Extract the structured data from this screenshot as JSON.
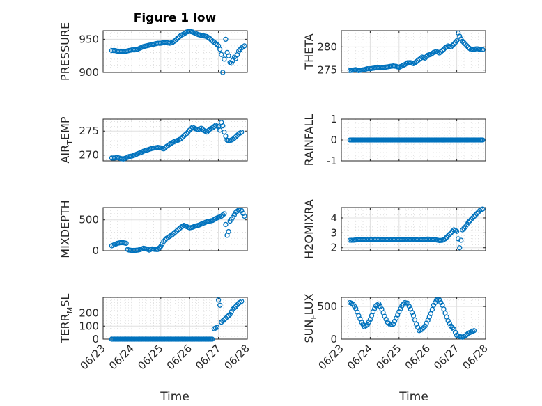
{
  "figure": {
    "title": "Figure 1 low",
    "xlabel": "Time",
    "x_tick_labels": [
      "06/23",
      "06/24",
      "06/25",
      "06/26",
      "06/27",
      "06/28"
    ],
    "marker_color": "#0072BD"
  },
  "chart_data": [
    {
      "type": "scatter",
      "ylabel": "PRESSURE",
      "ylim": [
        900,
        963
      ],
      "yticks": [
        900,
        950
      ],
      "grid": true,
      "points": [
        [
          0.3,
          933
        ],
        [
          0.4,
          933
        ],
        [
          0.5,
          932
        ],
        [
          0.6,
          932
        ],
        [
          0.7,
          932
        ],
        [
          0.8,
          932
        ],
        [
          0.9,
          933
        ],
        [
          1.0,
          934
        ],
        [
          1.1,
          934
        ],
        [
          1.2,
          935
        ],
        [
          1.3,
          937
        ],
        [
          1.4,
          939
        ],
        [
          1.5,
          940
        ],
        [
          1.6,
          941
        ],
        [
          1.7,
          942
        ],
        [
          1.8,
          943
        ],
        [
          1.9,
          944
        ],
        [
          2.0,
          944
        ],
        [
          2.1,
          945
        ],
        [
          2.2,
          945
        ],
        [
          2.3,
          944
        ],
        [
          2.4,
          945
        ],
        [
          2.5,
          948
        ],
        [
          2.6,
          952
        ],
        [
          2.7,
          956
        ],
        [
          2.8,
          958
        ],
        [
          2.9,
          961
        ],
        [
          3.0,
          962
        ],
        [
          3.1,
          961
        ],
        [
          3.2,
          959
        ],
        [
          3.3,
          957
        ],
        [
          3.4,
          956
        ],
        [
          3.5,
          955
        ],
        [
          3.6,
          954
        ],
        [
          3.7,
          951
        ],
        [
          3.8,
          947
        ],
        [
          3.9,
          944
        ],
        [
          4.0,
          940
        ],
        [
          4.05,
          935
        ],
        [
          4.1,
          927
        ],
        [
          4.15,
          900
        ],
        [
          4.2,
          920
        ],
        [
          4.25,
          950
        ],
        [
          4.3,
          930
        ],
        [
          4.35,
          925
        ],
        [
          4.4,
          915
        ],
        [
          4.45,
          914
        ],
        [
          4.5,
          918
        ],
        [
          4.55,
          923
        ],
        [
          4.6,
          921
        ],
        [
          4.7,
          932
        ],
        [
          4.8,
          937
        ],
        [
          4.9,
          940
        ]
      ]
    },
    {
      "type": "scatter",
      "ylabel": "THETA",
      "ylim": [
        274.5,
        283.5
      ],
      "yticks": [
        275,
        280
      ],
      "grid": true,
      "points": [
        [
          0.3,
          274.9
        ],
        [
          0.4,
          275.0
        ],
        [
          0.5,
          275.1
        ],
        [
          0.6,
          274.9
        ],
        [
          0.7,
          275.0
        ],
        [
          0.8,
          275.1
        ],
        [
          0.9,
          275.3
        ],
        [
          1.0,
          275.3
        ],
        [
          1.1,
          275.4
        ],
        [
          1.2,
          275.5
        ],
        [
          1.3,
          275.5
        ],
        [
          1.4,
          275.6
        ],
        [
          1.5,
          275.6
        ],
        [
          1.6,
          275.7
        ],
        [
          1.7,
          275.8
        ],
        [
          1.8,
          275.9
        ],
        [
          1.9,
          275.8
        ],
        [
          2.0,
          275.6
        ],
        [
          2.1,
          275.9
        ],
        [
          2.2,
          276.2
        ],
        [
          2.3,
          276.6
        ],
        [
          2.4,
          276.6
        ],
        [
          2.5,
          276.4
        ],
        [
          2.6,
          276.8
        ],
        [
          2.7,
          277.3
        ],
        [
          2.8,
          277.8
        ],
        [
          2.9,
          277.6
        ],
        [
          3.0,
          278.2
        ],
        [
          3.1,
          278.4
        ],
        [
          3.2,
          278.8
        ],
        [
          3.3,
          279.0
        ],
        [
          3.4,
          278.7
        ],
        [
          3.5,
          279.2
        ],
        [
          3.6,
          279.8
        ],
        [
          3.7,
          280.2
        ],
        [
          3.8,
          280.0
        ],
        [
          3.9,
          280.6
        ],
        [
          4.0,
          281.3
        ],
        [
          4.05,
          283.0
        ],
        [
          4.1,
          282.3
        ],
        [
          4.15,
          281.7
        ],
        [
          4.2,
          281.2
        ],
        [
          4.3,
          280.6
        ],
        [
          4.4,
          279.9
        ],
        [
          4.5,
          279.4
        ],
        [
          4.6,
          279.5
        ],
        [
          4.7,
          279.6
        ],
        [
          4.8,
          279.5
        ],
        [
          4.9,
          279.4
        ]
      ]
    },
    {
      "type": "scatter",
      "ylabel": "AIR_TEMP",
      "ylim": [
        268.8,
        277.5
      ],
      "yticks": [
        270,
        275
      ],
      "grid": true,
      "points": [
        [
          0.3,
          269.4
        ],
        [
          0.4,
          269.4
        ],
        [
          0.5,
          269.5
        ],
        [
          0.6,
          269.3
        ],
        [
          0.7,
          269.2
        ],
        [
          0.8,
          269.4
        ],
        [
          0.9,
          269.7
        ],
        [
          1.0,
          269.8
        ],
        [
          1.1,
          270.0
        ],
        [
          1.2,
          270.3
        ],
        [
          1.3,
          270.5
        ],
        [
          1.4,
          270.8
        ],
        [
          1.5,
          271.0
        ],
        [
          1.6,
          271.2
        ],
        [
          1.7,
          271.4
        ],
        [
          1.8,
          271.5
        ],
        [
          1.9,
          271.6
        ],
        [
          2.0,
          271.5
        ],
        [
          2.1,
          271.3
        ],
        [
          2.2,
          271.8
        ],
        [
          2.3,
          272.2
        ],
        [
          2.4,
          272.6
        ],
        [
          2.5,
          272.9
        ],
        [
          2.6,
          273.1
        ],
        [
          2.7,
          273.4
        ],
        [
          2.8,
          274.0
        ],
        [
          2.9,
          274.5
        ],
        [
          3.0,
          275.2
        ],
        [
          3.1,
          275.8
        ],
        [
          3.2,
          275.5
        ],
        [
          3.3,
          275.3
        ],
        [
          3.4,
          275.6
        ],
        [
          3.5,
          275.1
        ],
        [
          3.6,
          274.8
        ],
        [
          3.7,
          275.4
        ],
        [
          3.8,
          275.7
        ],
        [
          3.9,
          276.2
        ],
        [
          4.0,
          275.9
        ],
        [
          4.05,
          275.2
        ],
        [
          4.1,
          276.8
        ],
        [
          4.15,
          276.1
        ],
        [
          4.2,
          274.8
        ],
        [
          4.3,
          273.1
        ],
        [
          4.4,
          273.0
        ],
        [
          4.5,
          273.3
        ],
        [
          4.6,
          273.8
        ],
        [
          4.7,
          274.4
        ],
        [
          4.8,
          274.8
        ]
      ]
    },
    {
      "type": "scatter",
      "ylabel": "RAINFALL",
      "ylim": [
        -1,
        1
      ],
      "yticks": [
        -1,
        0,
        1
      ],
      "grid": true,
      "x_range": [
        0.3,
        4.9
      ],
      "constant_value": 0
    },
    {
      "type": "scatter",
      "ylabel": "MIXDEPTH",
      "ylim": [
        0,
        700
      ],
      "yticks": [
        0,
        500
      ],
      "grid": true,
      "points": [
        [
          0.3,
          80
        ],
        [
          0.4,
          100
        ],
        [
          0.5,
          120
        ],
        [
          0.6,
          130
        ],
        [
          0.7,
          130
        ],
        [
          0.8,
          120
        ],
        [
          0.85,
          20
        ],
        [
          0.9,
          10
        ],
        [
          1.0,
          5
        ],
        [
          1.1,
          5
        ],
        [
          1.2,
          10
        ],
        [
          1.3,
          20
        ],
        [
          1.4,
          40
        ],
        [
          1.5,
          30
        ],
        [
          1.6,
          10
        ],
        [
          1.7,
          30
        ],
        [
          1.8,
          20
        ],
        [
          1.9,
          20
        ],
        [
          2.0,
          70
        ],
        [
          2.1,
          150
        ],
        [
          2.2,
          200
        ],
        [
          2.3,
          230
        ],
        [
          2.4,
          260
        ],
        [
          2.5,
          300
        ],
        [
          2.6,
          340
        ],
        [
          2.7,
          380
        ],
        [
          2.8,
          410
        ],
        [
          2.9,
          390
        ],
        [
          3.0,
          370
        ],
        [
          3.1,
          380
        ],
        [
          3.2,
          400
        ],
        [
          3.3,
          410
        ],
        [
          3.4,
          430
        ],
        [
          3.5,
          450
        ],
        [
          3.6,
          470
        ],
        [
          3.7,
          480
        ],
        [
          3.8,
          490
        ],
        [
          3.9,
          520
        ],
        [
          4.0,
          540
        ],
        [
          4.1,
          560
        ],
        [
          4.2,
          600
        ],
        [
          4.3,
          250
        ],
        [
          4.35,
          310
        ],
        [
          4.4,
          480
        ],
        [
          4.5,
          540
        ],
        [
          4.6,
          620
        ],
        [
          4.7,
          660
        ],
        [
          4.8,
          650
        ],
        [
          4.9,
          560
        ]
      ]
    },
    {
      "type": "scatter",
      "ylabel": "H2OMIXRA",
      "ylim": [
        1.8,
        4.7
      ],
      "yticks": [
        2,
        3,
        4
      ],
      "grid": true,
      "points": [
        [
          0.3,
          2.5
        ],
        [
          0.4,
          2.5
        ],
        [
          0.5,
          2.52
        ],
        [
          0.6,
          2.55
        ],
        [
          0.7,
          2.55
        ],
        [
          0.8,
          2.55
        ],
        [
          0.9,
          2.57
        ],
        [
          1.0,
          2.57
        ],
        [
          1.1,
          2.57
        ],
        [
          1.2,
          2.57
        ],
        [
          1.3,
          2.57
        ],
        [
          1.4,
          2.56
        ],
        [
          1.5,
          2.56
        ],
        [
          1.6,
          2.56
        ],
        [
          1.7,
          2.56
        ],
        [
          1.8,
          2.56
        ],
        [
          1.9,
          2.55
        ],
        [
          2.0,
          2.55
        ],
        [
          2.1,
          2.55
        ],
        [
          2.2,
          2.54
        ],
        [
          2.3,
          2.54
        ],
        [
          2.4,
          2.53
        ],
        [
          2.5,
          2.53
        ],
        [
          2.6,
          2.55
        ],
        [
          2.7,
          2.57
        ],
        [
          2.8,
          2.55
        ],
        [
          2.9,
          2.56
        ],
        [
          3.0,
          2.58
        ],
        [
          3.1,
          2.56
        ],
        [
          3.2,
          2.55
        ],
        [
          3.3,
          2.52
        ],
        [
          3.4,
          2.48
        ],
        [
          3.5,
          2.5
        ],
        [
          3.6,
          2.6
        ],
        [
          3.7,
          2.8
        ],
        [
          3.8,
          3.0
        ],
        [
          3.9,
          3.2
        ],
        [
          4.0,
          3.1
        ],
        [
          4.05,
          2.6
        ],
        [
          4.1,
          2.0
        ],
        [
          4.15,
          2.5
        ],
        [
          4.2,
          3.2
        ],
        [
          4.3,
          3.4
        ],
        [
          4.4,
          3.7
        ],
        [
          4.5,
          3.9
        ],
        [
          4.6,
          4.1
        ],
        [
          4.7,
          4.3
        ],
        [
          4.8,
          4.5
        ],
        [
          4.9,
          4.6
        ]
      ]
    },
    {
      "type": "scatter",
      "ylabel": "TERR_MSL",
      "ylim": [
        0,
        320
      ],
      "yticks": [
        0,
        100,
        200
      ],
      "grid": true,
      "flat_segment": {
        "x_range": [
          0.3,
          3.8
        ],
        "value": 0
      },
      "points": [
        [
          3.85,
          80
        ],
        [
          3.9,
          85
        ],
        [
          3.95,
          90
        ],
        [
          4.0,
          300
        ],
        [
          4.05,
          260
        ],
        [
          4.1,
          130
        ],
        [
          4.2,
          150
        ],
        [
          4.3,
          170
        ],
        [
          4.4,
          190
        ],
        [
          4.5,
          230
        ],
        [
          4.6,
          250
        ],
        [
          4.7,
          275
        ],
        [
          4.8,
          290
        ]
      ]
    },
    {
      "type": "scatter",
      "ylabel": "SUN_FLUX",
      "ylim": [
        0,
        640
      ],
      "yticks": [
        0,
        500
      ],
      "grid": true,
      "points": [
        [
          0.3,
          560
        ],
        [
          0.4,
          540
        ],
        [
          0.5,
          470
        ],
        [
          0.6,
          360
        ],
        [
          0.7,
          260
        ],
        [
          0.8,
          190
        ],
        [
          0.9,
          220
        ],
        [
          1.0,
          300
        ],
        [
          1.1,
          420
        ],
        [
          1.2,
          510
        ],
        [
          1.3,
          540
        ],
        [
          1.4,
          460
        ],
        [
          1.5,
          350
        ],
        [
          1.6,
          260
        ],
        [
          1.7,
          220
        ],
        [
          1.8,
          230
        ],
        [
          1.9,
          320
        ],
        [
          2.0,
          420
        ],
        [
          2.1,
          510
        ],
        [
          2.2,
          560
        ],
        [
          2.3,
          550
        ],
        [
          2.4,
          460
        ],
        [
          2.5,
          360
        ],
        [
          2.6,
          230
        ],
        [
          2.7,
          130
        ],
        [
          2.8,
          150
        ],
        [
          2.9,
          200
        ],
        [
          3.0,
          290
        ],
        [
          3.1,
          390
        ],
        [
          3.2,
          520
        ],
        [
          3.3,
          600
        ],
        [
          3.4,
          600
        ],
        [
          3.5,
          520
        ],
        [
          3.6,
          400
        ],
        [
          3.7,
          280
        ],
        [
          3.8,
          200
        ],
        [
          3.9,
          150
        ],
        [
          4.0,
          60
        ],
        [
          4.1,
          40
        ],
        [
          4.2,
          30
        ],
        [
          4.3,
          50
        ],
        [
          4.4,
          90
        ],
        [
          4.5,
          110
        ],
        [
          4.6,
          130
        ]
      ]
    }
  ]
}
